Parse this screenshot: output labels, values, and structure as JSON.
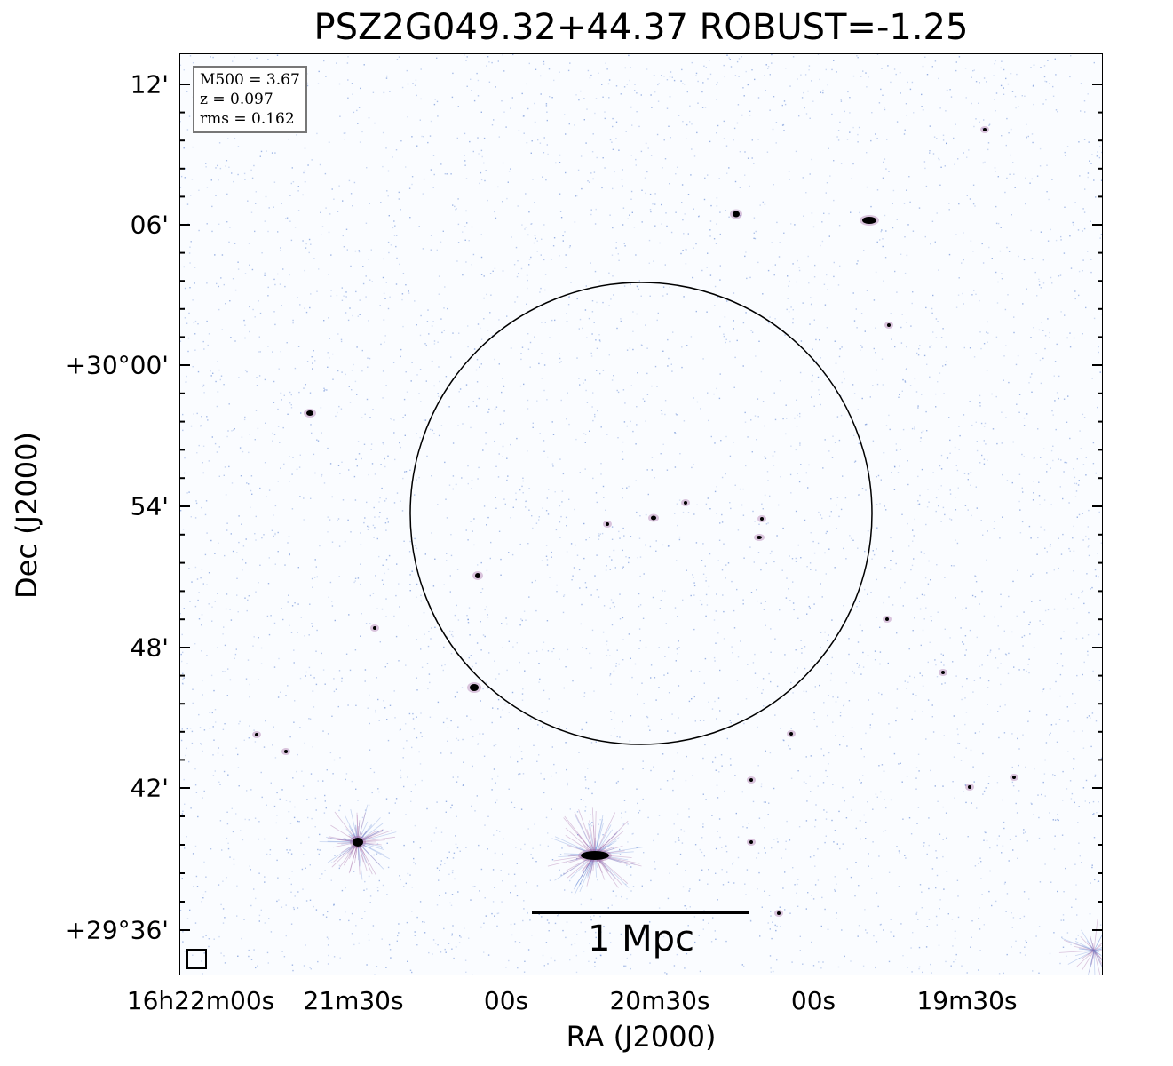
{
  "title": "PSZ2G049.32+44.37 ROBUST=-1.25",
  "axes": {
    "xlabel": "RA (J2000)",
    "ylabel": "Dec (J2000)",
    "xticks": [
      "16h22m00s",
      "21m30s",
      "00s",
      "20m30s",
      "00s",
      "19m30s"
    ],
    "yticks": [
      "12'",
      "06'",
      "+30°00'",
      "54'",
      "48'",
      "42'",
      "+29°36'"
    ]
  },
  "info": {
    "m500": "M500 = 3.67",
    "z": "z = 0.097",
    "rms": "rms = 0.162"
  },
  "scalebar": {
    "label": "1 Mpc"
  },
  "colors": {
    "noise": "#6c8fd6",
    "source": "#000000",
    "halo": "#9a5a9a"
  }
}
